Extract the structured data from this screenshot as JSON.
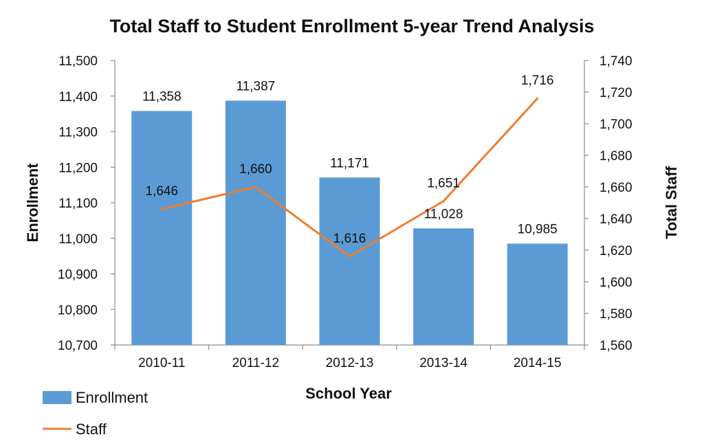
{
  "chart_data": {
    "type": "bar+line",
    "title": "Total Staff to Student Enrollment 5-year Trend Analysis",
    "xlabel": "School Year",
    "ylabel_left": "Enrollment",
    "ylabel_right": "Total Staff",
    "categories": [
      "2010-11",
      "2011-12",
      "2012-13",
      "2013-14",
      "2014-15"
    ],
    "ylim_left": [
      10700,
      11500
    ],
    "ylim_right": [
      1560,
      1740
    ],
    "yticks_left": [
      "10,700",
      "10,800",
      "10,900",
      "11,000",
      "11,100",
      "11,200",
      "11,300",
      "11,400",
      "11,500"
    ],
    "yticks_right": [
      "1,560",
      "1,580",
      "1,600",
      "1,620",
      "1,640",
      "1,660",
      "1,680",
      "1,700",
      "1,720",
      "1,740"
    ],
    "series": [
      {
        "name": "Enrollment",
        "type": "bar",
        "axis": "left",
        "color": "#5b9bd5",
        "values": [
          11358,
          11387,
          11171,
          11028,
          10985
        ],
        "labels": [
          "11,358",
          "11,387",
          "11,171",
          "11,028",
          "10,985"
        ]
      },
      {
        "name": "Staff",
        "type": "line",
        "axis": "right",
        "color": "#ed7d31",
        "values": [
          1646,
          1660,
          1616,
          1651,
          1716
        ],
        "labels": [
          "1,646",
          "1,660",
          "1,616",
          "1,651",
          "1,716"
        ]
      }
    ],
    "legend": {
      "position": "bottom-left",
      "items": [
        "Enrollment",
        "Staff"
      ]
    }
  }
}
